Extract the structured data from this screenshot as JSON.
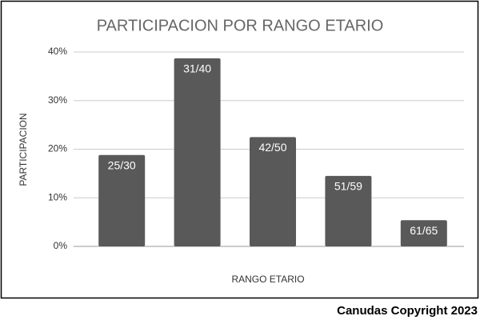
{
  "chart_data": {
    "type": "bar",
    "title": "PARTICIPACION POR RANGO ETARIO",
    "x_label": "RANGO ETARIO",
    "y_label": "PARTICIPACION",
    "categories": [
      "25/30",
      "31/40",
      "42/50",
      "51/59",
      "61/65"
    ],
    "values": [
      18.8,
      38.7,
      22.5,
      14.5,
      5.4
    ],
    "color": "#595959",
    "ylim": [
      0,
      40
    ],
    "yticks": [
      {
        "value": 0,
        "label": "0%"
      },
      {
        "value": 10,
        "label": "10%"
      },
      {
        "value": 20,
        "label": "20%"
      },
      {
        "value": 30,
        "label": "30%"
      },
      {
        "value": 40,
        "label": "40%"
      }
    ],
    "grid": true
  },
  "footer": "Canudas Copyright 2023"
}
